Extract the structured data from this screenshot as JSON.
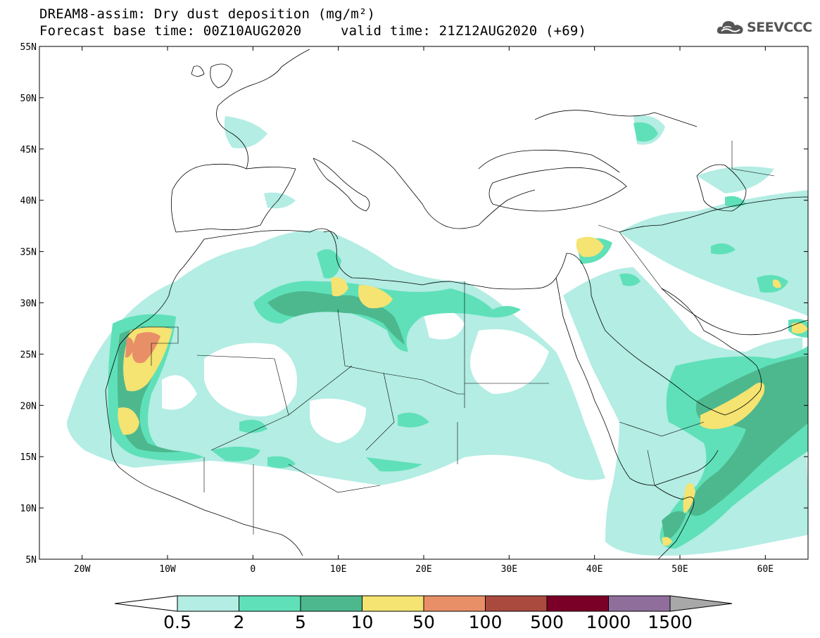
{
  "title": {
    "line1": "DREAM8-assim: Dry dust deposition (mg/m²)",
    "line2": "Forecast base time: 00Z10AUG2020",
    "line2b": "valid time: 21Z12AUG2020 (+69)"
  },
  "logo": {
    "text": "SEEVCCC",
    "icon": "cloud-icon"
  },
  "map": {
    "projection": "lat-lon",
    "lon_range": [
      -25,
      65
    ],
    "lat_range": [
      5,
      55
    ],
    "lat_ticks": [
      "55N",
      "50N",
      "45N",
      "40N",
      "35N",
      "30N",
      "25N",
      "20N",
      "15N",
      "10N",
      "5N"
    ],
    "lon_ticks": [
      "20W",
      "10W",
      "0",
      "10E",
      "20E",
      "30E",
      "40E",
      "50E",
      "60E"
    ]
  },
  "colorbar": {
    "labels": [
      "0.5",
      "2",
      "5",
      "10",
      "50",
      "100",
      "500",
      "1000",
      "1500"
    ],
    "colors": [
      "#b3ede4",
      "#5fe0b8",
      "#4db88e",
      "#f5e372",
      "#e98f68",
      "#aa4a3e",
      "#7a0028",
      "#8f6e9c",
      "#a8a8a8"
    ],
    "underflow_color": "#ffffff"
  }
}
